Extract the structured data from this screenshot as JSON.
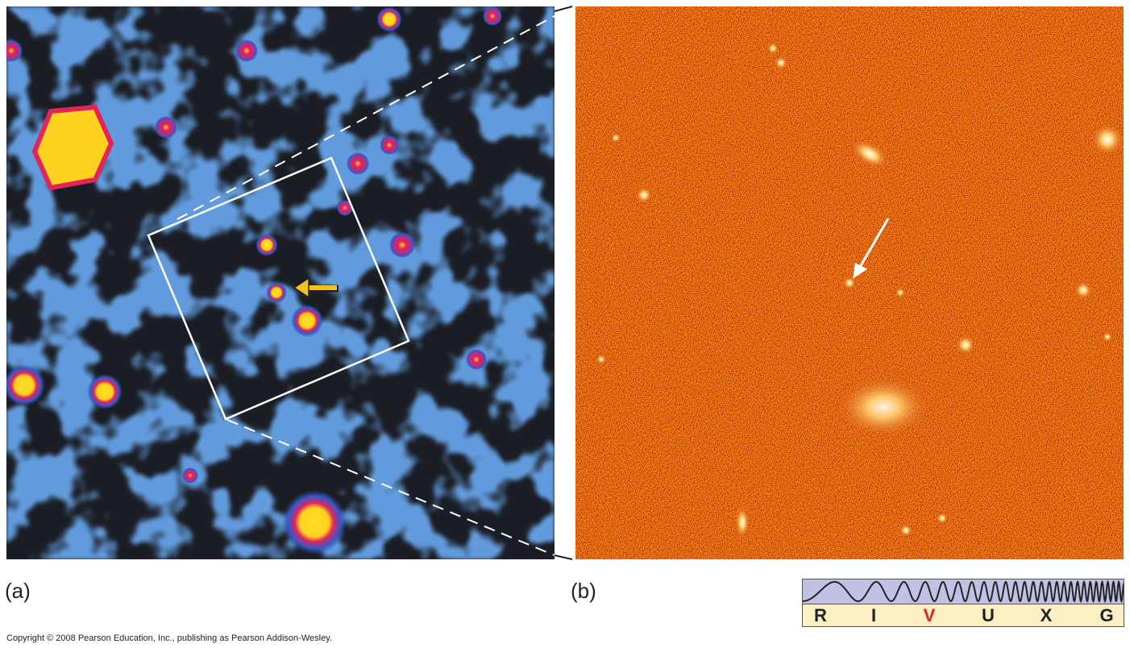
{
  "panels": [
    {
      "label": "(a)"
    },
    {
      "label": "(b)"
    }
  ],
  "spectrum": {
    "bands": [
      "R",
      "I",
      "V",
      "U",
      "X",
      "G"
    ],
    "active_band": "V",
    "active_color": "#e2231a"
  },
  "copyright": "Copyright © 2008 Pearson Education, Inc., publishing as Pearson Addison-Wesley."
}
